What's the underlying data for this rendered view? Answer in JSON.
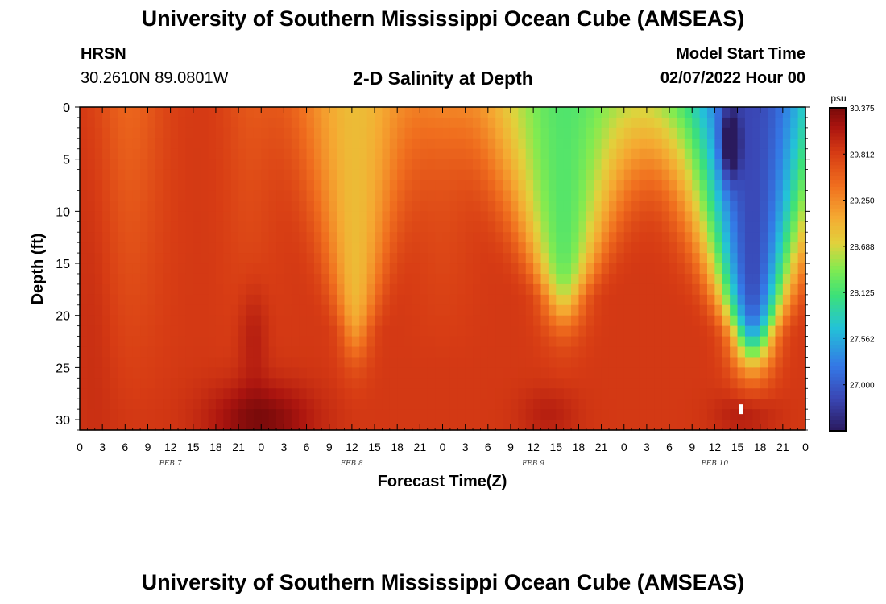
{
  "header": {
    "title": "University of Southern Mississippi Ocean Cube (AMSEAS)",
    "station_name": "HRSN",
    "coordinates": "30.2610N  89.0801W",
    "plot_title": "2-D Salinity at Depth",
    "model_start_label": "Model Start Time",
    "model_start_value": "02/07/2022 Hour 00"
  },
  "footer": {
    "title": "University of Southern Mississippi Ocean Cube (AMSEAS)"
  },
  "colors": {
    "background": "#ffffff",
    "scale_low": "#2a1a5e",
    "scale_high": "#7a0a0a"
  },
  "chart_data": {
    "type": "heatmap",
    "title": "2-D Salinity at Depth",
    "xlabel": "Forecast Time(Z)",
    "ylabel": "Depth (ft)",
    "x_hours": [
      0,
      96
    ],
    "y_depth_ft": [
      0,
      31
    ],
    "x_tick_labels": [
      "0",
      "3",
      "6",
      "9",
      "12",
      "15",
      "18",
      "21",
      "0",
      "3",
      "6",
      "9",
      "12",
      "15",
      "18",
      "21",
      "0",
      "3",
      "6",
      "9",
      "12",
      "15",
      "18",
      "21",
      "0",
      "3",
      "6",
      "9",
      "12",
      "15",
      "18",
      "21",
      "0"
    ],
    "date_labels": [
      {
        "text": "FEB 7",
        "hour": 12
      },
      {
        "text": "FEB 8",
        "hour": 36
      },
      {
        "text": "FEB 9",
        "hour": 60
      },
      {
        "text": "FEB 10",
        "hour": 84
      }
    ],
    "y_ticks": [
      0,
      5,
      10,
      15,
      20,
      25,
      30
    ],
    "y_tick_labels": [
      "0",
      "5",
      "10",
      "15",
      "20",
      "25",
      "30"
    ],
    "colorbar": {
      "unit": "psu",
      "range": [
        26.4375,
        30.375
      ],
      "labels": [
        "30.375",
        "29.812",
        "29.250",
        "28.688",
        "28.125",
        "27.562",
        "27.000"
      ],
      "label_values": [
        30.375,
        29.8125,
        29.25,
        28.6875,
        28.125,
        27.5625,
        27.0
      ]
    },
    "baseline_psu": 29.85,
    "features": [
      {
        "type": "column",
        "center_h": 6.5,
        "width_h": 4.5,
        "top_delta": -0.35,
        "depth_scale_ft": 30
      },
      {
        "type": "column",
        "center_h": 22.5,
        "width_h": 3.5,
        "top_delta": -0.2,
        "depth_scale_ft": 30
      },
      {
        "type": "cone",
        "center_h": 36.5,
        "top_width_h": 8,
        "bottom_h": 23,
        "delta": -0.95
      },
      {
        "type": "column",
        "center_h": 48,
        "width_h": 4,
        "top_delta": -0.25,
        "depth_scale_ft": 25
      },
      {
        "type": "cone",
        "center_h": 64,
        "top_width_h": 11,
        "bottom_h": 19.5,
        "delta": -1.65
      },
      {
        "type": "cone",
        "center_h": 89,
        "top_width_h": 11,
        "bottom_h": 23.5,
        "delta": -3.0
      },
      {
        "type": "blob",
        "center_h": 86,
        "sigma_h": 1.3,
        "center_d": 3.5,
        "sigma_d": 3.5,
        "delta": -1.0
      },
      {
        "type": "blob",
        "center_h": 24,
        "sigma_h": 7,
        "center_d": 30,
        "sigma_d": 3.5,
        "delta": 0.5
      },
      {
        "type": "blob",
        "center_h": 23,
        "sigma_h": 2,
        "center_d": 22,
        "sigma_d": 5,
        "delta": 0.25
      },
      {
        "type": "blob",
        "center_h": 62,
        "sigma_h": 4,
        "center_d": 29.5,
        "sigma_d": 2.5,
        "delta": 0.2
      },
      {
        "type": "blob",
        "center_h": 88,
        "sigma_h": 4,
        "center_d": 29.5,
        "sigma_d": 2,
        "delta": 0.25
      },
      {
        "type": "blob",
        "center_h": 2,
        "sigma_h": 3,
        "center_d": 18,
        "sigma_d": 20,
        "delta": 0.1
      }
    ],
    "marker": {
      "hour": 87.5,
      "depth_ft": 29
    }
  }
}
